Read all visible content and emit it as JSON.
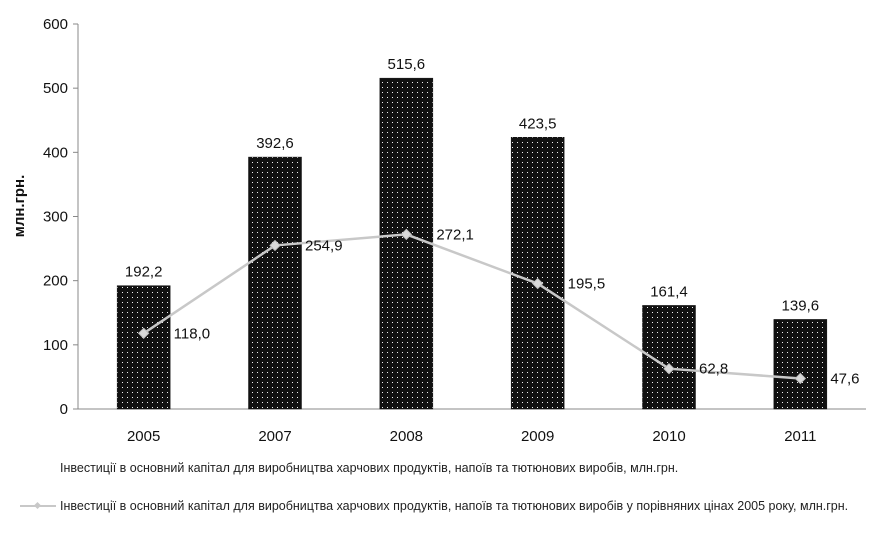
{
  "chart_data": {
    "type": "bar",
    "categories": [
      "2005",
      "2007",
      "2008",
      "2009",
      "2010",
      "2011"
    ],
    "ylabel": "млн.грн.",
    "ylim": [
      0,
      600
    ],
    "yticks": [
      0,
      100,
      200,
      300,
      400,
      500,
      600
    ],
    "grid": false,
    "legend_position": "bottom",
    "series": [
      {
        "name": "Інвестиції в основний капітал для виробництва харчових продуктів, напоїв та тютюнових виробів, млн.грн.",
        "type": "bar",
        "values": [
          192.2,
          392.6,
          515.6,
          423.5,
          161.4,
          139.6
        ],
        "labels": [
          "192,2",
          "392,6",
          "515,6",
          "423,5",
          "161,4",
          "139,6"
        ],
        "color": "#111111"
      },
      {
        "name": "Інвестиції в основний капітал для виробництва харчових продуктів, напоїв та тютюнових виробів у порівняних цінах 2005 року, млн.грн.",
        "type": "line",
        "values": [
          118.0,
          254.9,
          272.1,
          195.5,
          62.8,
          47.6
        ],
        "labels": [
          "118,0",
          "254,9",
          "272,1",
          "195,5",
          "62,8",
          "47,6"
        ],
        "color": "#c8c8c8"
      }
    ]
  }
}
